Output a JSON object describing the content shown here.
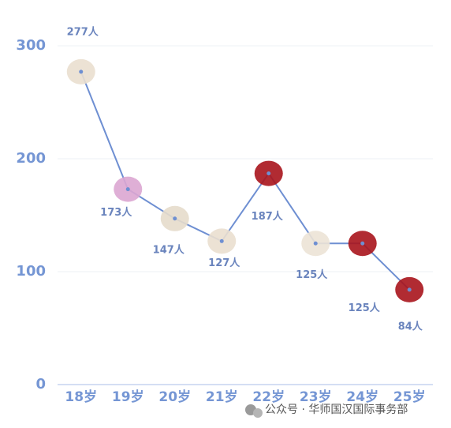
{
  "chart_data": {
    "type": "line",
    "categories": [
      "18岁",
      "19岁",
      "20岁",
      "21岁",
      "22岁",
      "23岁",
      "24岁",
      "25岁"
    ],
    "series": [
      {
        "color": "#6e8fd2",
        "values": [
          277,
          173,
          147,
          127,
          187,
          125,
          125,
          84
        ],
        "value_labels": [
          "277人",
          "173人",
          "147人",
          "127人",
          "187人",
          "125人",
          "125人",
          "84人"
        ]
      }
    ],
    "ylim": [
      0,
      300
    ],
    "yticks": [
      0,
      100,
      200,
      300
    ],
    "grid": true,
    "annotations": [
      "公众号 · 华师国汉国际事务部"
    ]
  }
}
